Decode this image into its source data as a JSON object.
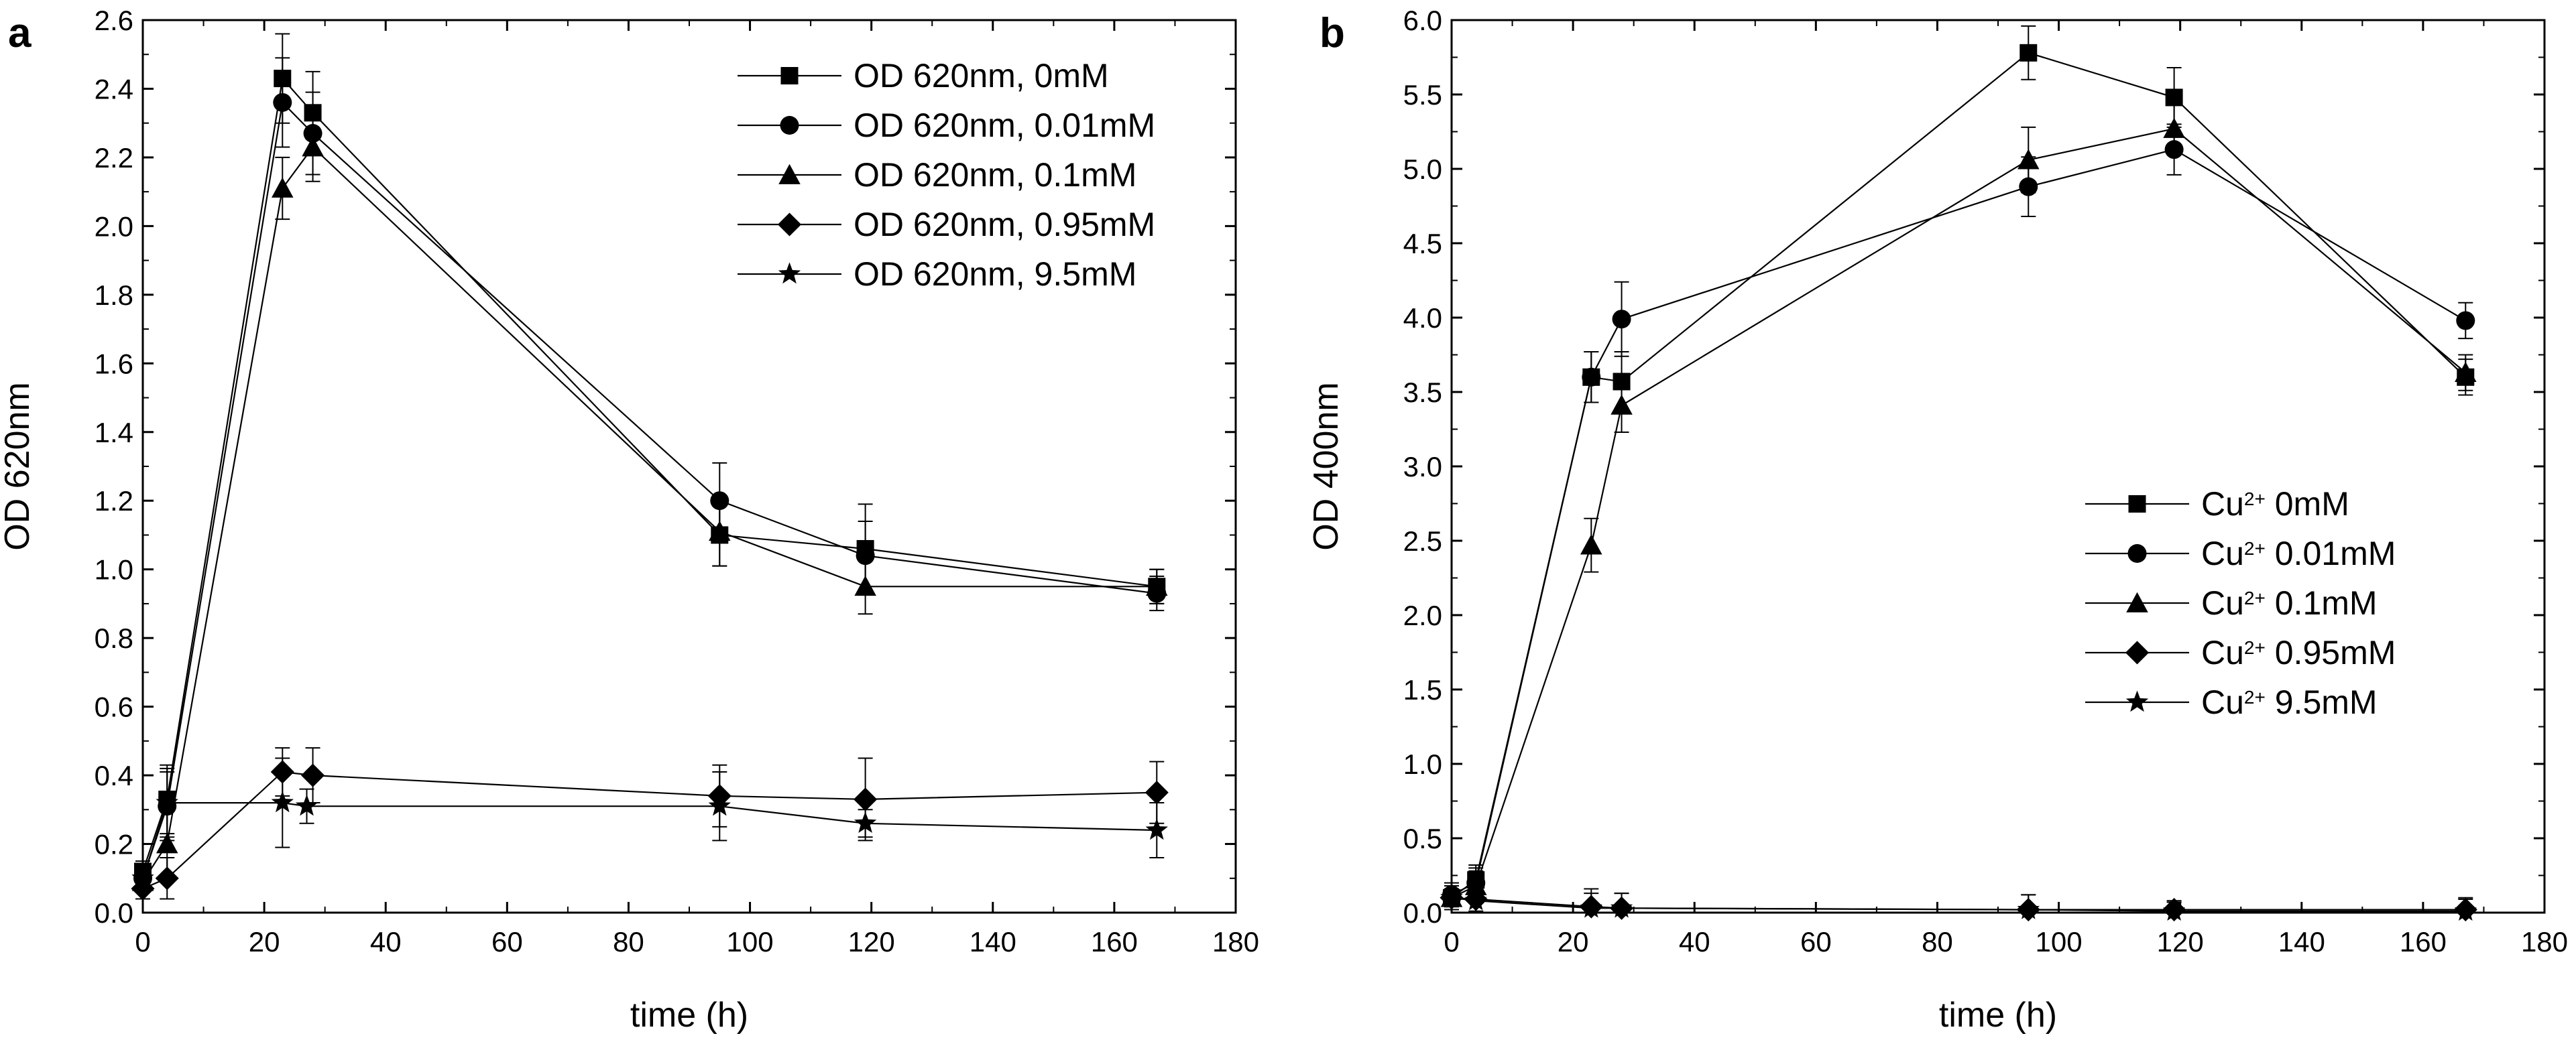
{
  "chart_data": [
    {
      "type": "line",
      "panel_label": "a",
      "xlabel": "time (h)",
      "ylabel": "OD 620nm",
      "xlim": [
        0,
        180
      ],
      "ylim": [
        0,
        2.6
      ],
      "xticks": [
        0,
        20,
        40,
        60,
        80,
        100,
        120,
        140,
        160,
        180
      ],
      "yticks": [
        0.0,
        0.2,
        0.4,
        0.6,
        0.8,
        1.0,
        1.2,
        1.4,
        1.6,
        1.8,
        2.0,
        2.2,
        2.4,
        2.6
      ],
      "ytick_labels": [
        "0.0",
        "0.2",
        "0.4",
        "0.6",
        "0.8",
        "1.0",
        "1.2",
        "1.4",
        "1.6",
        "1.8",
        "2.0",
        "2.2",
        "2.4",
        "2.6"
      ],
      "legend_position": "top-right",
      "series": [
        {
          "name": "OD 620nm, 0mM",
          "marker": "square",
          "x": [
            0,
            4,
            23,
            28,
            95,
            119,
            167
          ],
          "y": [
            0.12,
            0.33,
            2.43,
            2.33,
            1.1,
            1.06,
            0.95
          ],
          "err": [
            0.03,
            0.1,
            0.13,
            0.12,
            0.09,
            0.13,
            0.05
          ]
        },
        {
          "name": "OD 620nm, 0.01mM",
          "marker": "circle",
          "x": [
            0,
            4,
            23,
            28,
            95,
            119,
            167
          ],
          "y": [
            0.1,
            0.31,
            2.36,
            2.27,
            1.2,
            1.04,
            0.93
          ],
          "err": [
            0.03,
            0.1,
            0.13,
            0.12,
            0.11,
            0.1,
            0.05
          ]
        },
        {
          "name": "OD 620nm, 0.1mM",
          "marker": "triangle",
          "x": [
            0,
            4,
            23,
            28,
            95,
            119,
            167
          ],
          "y": [
            0.09,
            0.2,
            2.11,
            2.23,
            1.11,
            0.95,
            0.95
          ],
          "err": [
            0.03,
            0.1,
            0.09,
            0.1,
            0.1,
            0.08,
            0.05
          ]
        },
        {
          "name": "OD 620nm, 0.95mM",
          "marker": "diamond",
          "x": [
            0,
            4,
            23,
            28,
            95,
            119,
            167
          ],
          "y": [
            0.07,
            0.1,
            0.41,
            0.4,
            0.34,
            0.33,
            0.35
          ],
          "err": [
            0.03,
            0.06,
            0.07,
            0.08,
            0.09,
            0.12,
            0.09
          ]
        },
        {
          "name": "OD 620nm, 9.5mM",
          "marker": "star",
          "x": [
            0,
            4,
            23,
            27,
            95,
            119,
            167
          ],
          "y": [
            0.1,
            0.32,
            0.32,
            0.31,
            0.31,
            0.26,
            0.24
          ],
          "err": [
            0.03,
            0.1,
            0.13,
            0.05,
            0.1,
            0.04,
            0.08
          ]
        }
      ]
    },
    {
      "type": "line",
      "panel_label": "b",
      "xlabel": "time (h)",
      "ylabel": "OD 400nm",
      "xlim": [
        0,
        180
      ],
      "ylim": [
        0,
        6.0
      ],
      "xticks": [
        0,
        20,
        40,
        60,
        80,
        100,
        120,
        140,
        160,
        180
      ],
      "yticks": [
        0.0,
        0.5,
        1.0,
        1.5,
        2.0,
        2.5,
        3.0,
        3.5,
        4.0,
        4.5,
        5.0,
        5.5,
        6.0
      ],
      "ytick_labels": [
        "0.0",
        "0.5",
        "1.0",
        "1.5",
        "2.0",
        "2.5",
        "3.0",
        "3.5",
        "4.0",
        "4.5",
        "5.0",
        "5.5",
        "6.0"
      ],
      "legend_position": "center-right",
      "legend_prefix": "Cu",
      "legend_superscript": "2+",
      "series": [
        {
          "name": "Cu2+ 0mM",
          "legend_suffix": " 0mM",
          "marker": "square",
          "x": [
            0,
            4,
            23,
            28,
            95,
            119,
            167
          ],
          "y": [
            0.1,
            0.22,
            3.6,
            3.57,
            5.78,
            5.48,
            3.6
          ],
          "err": [
            0.08,
            0.1,
            0.17,
            0.2,
            0.18,
            0.2,
            0.12
          ]
        },
        {
          "name": "Cu2+ 0.01mM",
          "legend_suffix": " 0.01mM",
          "marker": "circle",
          "x": [
            0,
            4,
            23,
            28,
            95,
            119,
            167
          ],
          "y": [
            0.12,
            0.2,
            3.6,
            3.99,
            4.88,
            5.13,
            3.98
          ],
          "err": [
            0.08,
            0.1,
            0.17,
            0.25,
            0.2,
            0.17,
            0.12
          ]
        },
        {
          "name": "Cu2+ 0.1mM",
          "legend_suffix": " 0.1mM",
          "marker": "triangle",
          "x": [
            0,
            4,
            23,
            28,
            95,
            119,
            167
          ],
          "y": [
            0.1,
            0.18,
            2.47,
            3.41,
            5.06,
            5.27,
            3.63
          ],
          "err": [
            0.08,
            0.1,
            0.18,
            0.18,
            0.22,
            0.17,
            0.12
          ]
        },
        {
          "name": "Cu2+ 0.95mM",
          "legend_suffix": " 0.95mM",
          "marker": "diamond",
          "x": [
            0,
            4,
            23,
            28,
            95,
            119,
            167
          ],
          "y": [
            0.1,
            0.09,
            0.04,
            0.03,
            0.02,
            0.02,
            0.02
          ],
          "err": [
            0.06,
            0.08,
            0.12,
            0.1,
            0.1,
            0.06,
            0.08
          ]
        },
        {
          "name": "Cu2+ 9.5mM",
          "legend_suffix": " 9.5mM",
          "marker": "star",
          "x": [
            0,
            4,
            23,
            28,
            95,
            119,
            167
          ],
          "y": [
            0.1,
            0.08,
            0.03,
            0.03,
            0.02,
            0.01,
            0.01
          ],
          "err": [
            0.06,
            0.08,
            0.1,
            0.1,
            0.1,
            0.06,
            0.08
          ]
        }
      ]
    }
  ]
}
